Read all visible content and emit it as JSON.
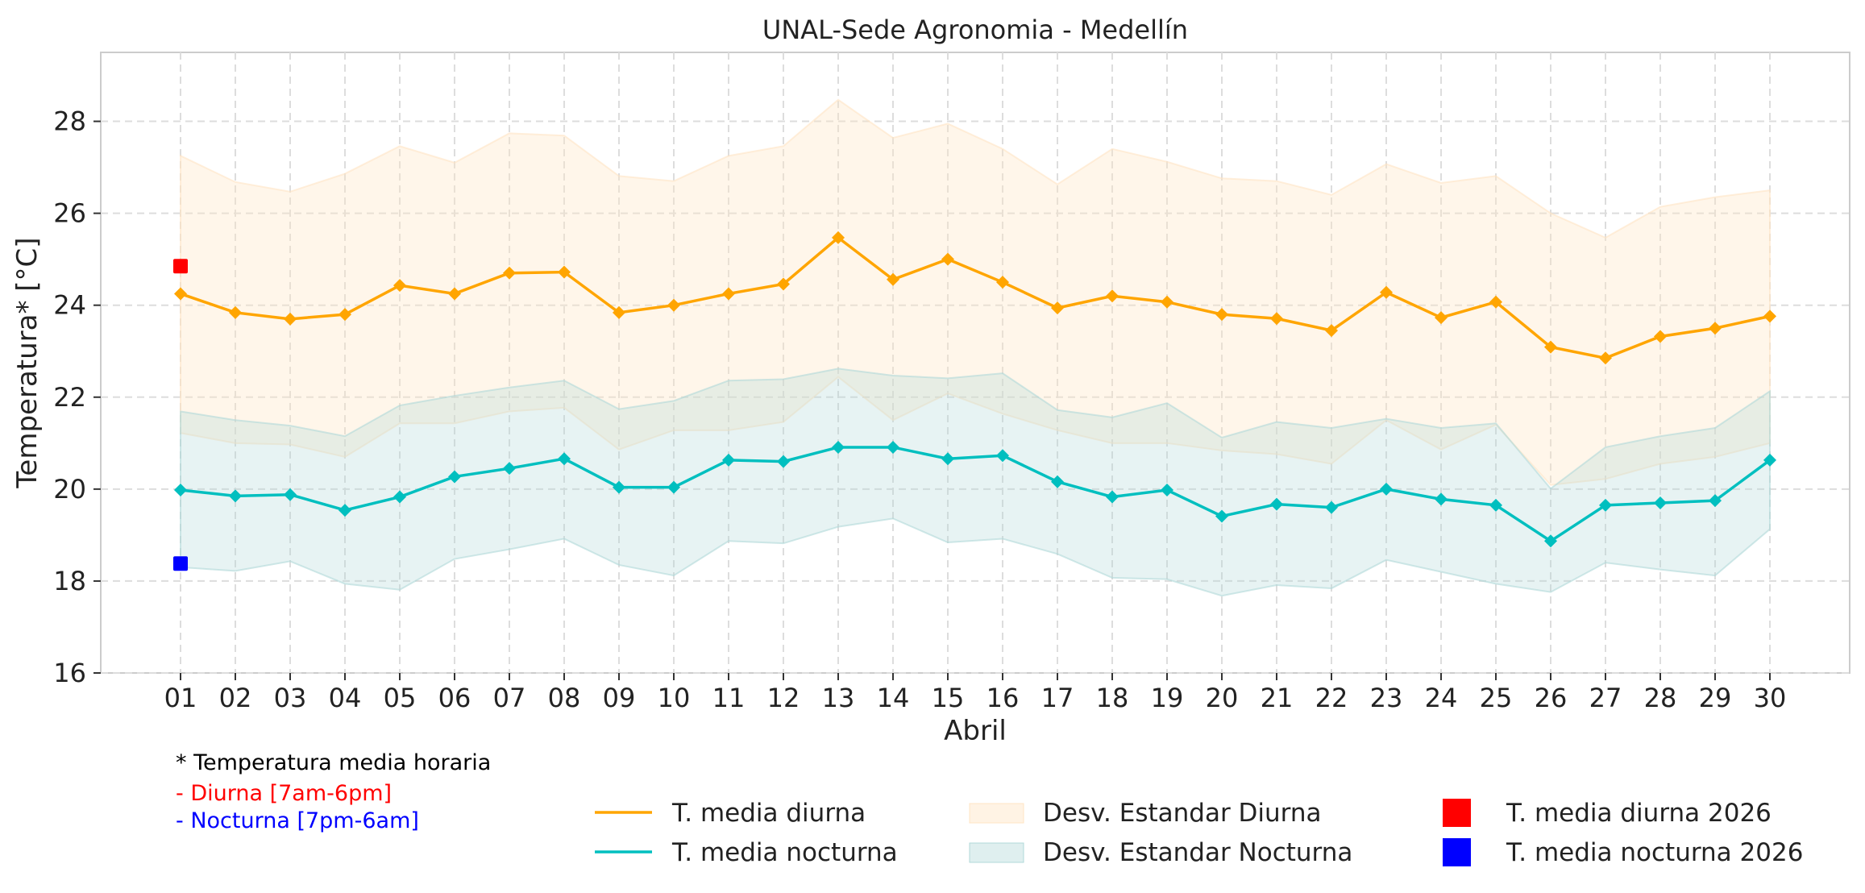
{
  "chart_data": {
    "type": "line",
    "title": "UNAL-Sede Agronomia - Medellín",
    "xlabel": "Abril",
    "ylabel": "Temperatura* [°C]",
    "ylim": [
      16,
      29.5
    ],
    "yticks": [
      16,
      18,
      20,
      22,
      24,
      26,
      28
    ],
    "grid": true,
    "categories": [
      "01",
      "02",
      "03",
      "04",
      "05",
      "06",
      "07",
      "08",
      "09",
      "10",
      "11",
      "12",
      "13",
      "14",
      "15",
      "16",
      "17",
      "18",
      "19",
      "20",
      "21",
      "22",
      "23",
      "24",
      "25",
      "26",
      "27",
      "28",
      "29",
      "30"
    ],
    "series": [
      {
        "name": "T. media diurna",
        "color": "#FFA500",
        "values": [
          24.25,
          23.84,
          23.7,
          23.8,
          24.43,
          24.25,
          24.7,
          24.72,
          23.84,
          24.0,
          24.25,
          24.46,
          25.47,
          24.56,
          25.0,
          24.5,
          23.94,
          24.2,
          24.07,
          23.8,
          23.71,
          23.45,
          24.28,
          23.73,
          24.07,
          23.09,
          22.85,
          23.32,
          23.5,
          23.76
        ]
      },
      {
        "name": "T. media nocturna",
        "color": "#00BFBF",
        "values": [
          19.98,
          19.85,
          19.88,
          19.54,
          19.83,
          20.27,
          20.45,
          20.66,
          20.04,
          20.04,
          20.63,
          20.6,
          20.91,
          20.91,
          20.66,
          20.73,
          20.16,
          19.83,
          19.98,
          19.41,
          19.67,
          19.6,
          20.0,
          19.78,
          19.65,
          18.87,
          19.65,
          19.7,
          19.75,
          20.63
        ]
      }
    ],
    "bands": [
      {
        "name": "Desv. Estandar Diurna",
        "color": "#FFE4C4",
        "upper": [
          27.25,
          26.68,
          26.47,
          26.86,
          27.46,
          27.1,
          27.74,
          27.69,
          26.81,
          26.7,
          27.25,
          27.46,
          28.47,
          27.64,
          27.95,
          27.4,
          26.63,
          27.4,
          27.12,
          26.76,
          26.7,
          26.4,
          27.07,
          26.66,
          26.81,
          26.0,
          25.47,
          26.14,
          26.35,
          26.5
        ],
        "lower": [
          21.22,
          21.0,
          20.97,
          20.7,
          21.43,
          21.43,
          21.69,
          21.77,
          20.86,
          21.28,
          21.28,
          21.46,
          22.44,
          21.5,
          22.08,
          21.64,
          21.28,
          21.0,
          21.0,
          20.84,
          20.76,
          20.55,
          21.5,
          20.86,
          21.4,
          20.09,
          20.22,
          20.55,
          20.7,
          21.0
        ]
      },
      {
        "name": "Desv. Estandar Nocturna",
        "color": "#B0D8D8",
        "upper": [
          21.69,
          21.5,
          21.38,
          21.15,
          21.82,
          22.03,
          22.21,
          22.36,
          21.74,
          21.92,
          22.36,
          22.39,
          22.62,
          22.47,
          22.41,
          22.52,
          21.72,
          21.56,
          21.87,
          21.12,
          21.46,
          21.33,
          21.53,
          21.33,
          21.43,
          20.01,
          20.91,
          21.15,
          21.33,
          22.13
        ],
        "lower": [
          18.3,
          18.22,
          18.43,
          17.94,
          17.81,
          18.48,
          18.69,
          18.92,
          18.35,
          18.12,
          18.87,
          18.82,
          19.18,
          19.36,
          18.84,
          18.92,
          18.59,
          18.07,
          18.04,
          17.68,
          17.91,
          17.84,
          18.46,
          18.2,
          17.94,
          17.76,
          18.4,
          18.25,
          18.12,
          19.13
        ]
      }
    ],
    "points": [
      {
        "name": "T. media diurna 2026",
        "color": "#FF0000",
        "x": "01",
        "y": 24.85
      },
      {
        "name": "T. media nocturna 2026",
        "color": "#0000FF",
        "x": "01",
        "y": 18.38
      }
    ],
    "legend_position": "bottom"
  },
  "notes": {
    "line1": "* Temperatura media horaria",
    "line2": "- Diurna [7am-6pm]",
    "line3": "- Nocturna [7pm-6am]",
    "line2_color": "#FF0000",
    "line3_color": "#0000FF"
  }
}
